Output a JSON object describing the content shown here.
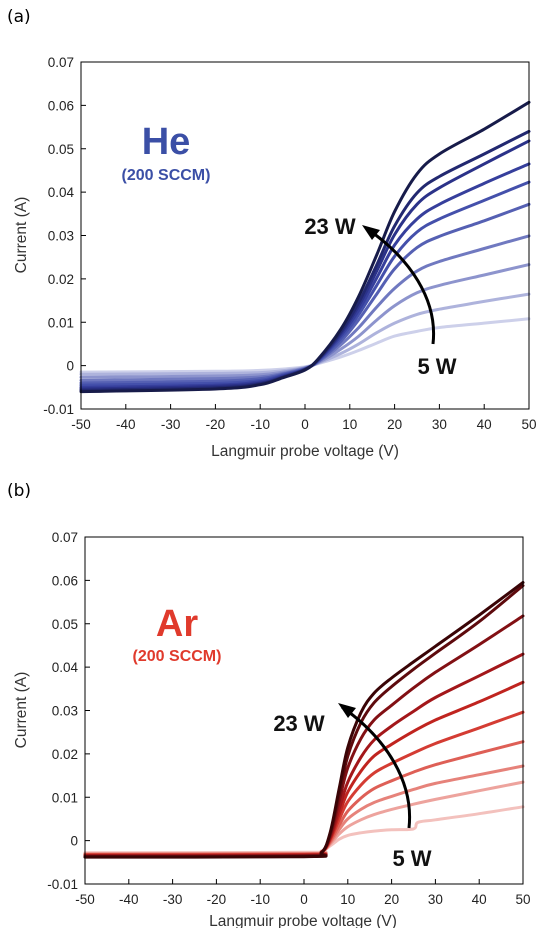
{
  "chart_data": [
    {
      "panel_label": "(a)",
      "type": "line",
      "gas": "He",
      "flow": "(200 SCCM)",
      "gas_color": "#3b4fa6",
      "xlabel": "Langmuir probe voltage (V)",
      "ylabel": "Current (A)",
      "xlim": [
        -50,
        50
      ],
      "ylim": [
        -0.01,
        0.07
      ],
      "xticks": [
        "-50",
        "-40",
        "-30",
        "-20",
        "-10",
        "0",
        "10",
        "20",
        "30",
        "40",
        "50"
      ],
      "yticks": [
        "-0.01",
        "0",
        "0.01",
        "0.02",
        "0.03",
        "0.04",
        "0.05",
        "0.06",
        "0.07"
      ],
      "annotation_high": "23 W",
      "annotation_low": "5 W",
      "series_colors": [
        "#cdd0ea",
        "#aeb3dc",
        "#8d94cd",
        "#7079c0",
        "#5560b3",
        "#4450ab",
        "#363f9c",
        "#2b3289",
        "#222870",
        "#171b4a"
      ],
      "series": [
        {
          "x": [
            -50,
            -20,
            -10,
            -5,
            0,
            3,
            8,
            12,
            16,
            20,
            25,
            30,
            40,
            50
          ],
          "y": [
            -0.0015,
            -0.0013,
            -0.0011,
            -0.0008,
            -0.0003,
            0.0005,
            0.002,
            0.0035,
            0.0052,
            0.0068,
            0.0079,
            0.0088,
            0.0098,
            0.0108
          ]
        },
        {
          "x": [
            -50,
            -20,
            -10,
            -5,
            0,
            3,
            8,
            12,
            16,
            20,
            25,
            30,
            40,
            50
          ],
          "y": [
            -0.002,
            -0.0018,
            -0.0016,
            -0.0012,
            -0.0004,
            0.0006,
            0.0028,
            0.005,
            0.0076,
            0.0098,
            0.0118,
            0.013,
            0.0148,
            0.0165
          ]
        },
        {
          "x": [
            -50,
            -20,
            -10,
            -5,
            0,
            3,
            8,
            12,
            16,
            20,
            25,
            30,
            40,
            50
          ],
          "y": [
            -0.0027,
            -0.0024,
            -0.0021,
            -0.0015,
            -0.0005,
            0.0007,
            0.0038,
            0.0068,
            0.0105,
            0.0138,
            0.0168,
            0.0185,
            0.0209,
            0.0233
          ]
        },
        {
          "x": [
            -50,
            -20,
            -10,
            -5,
            0,
            3,
            8,
            12,
            16,
            20,
            25,
            30,
            40,
            50
          ],
          "y": [
            -0.0034,
            -0.003,
            -0.0026,
            -0.0018,
            -0.0006,
            0.0009,
            0.0048,
            0.0088,
            0.0135,
            0.0178,
            0.0218,
            0.024,
            0.027,
            0.0299
          ]
        },
        {
          "x": [
            -50,
            -20,
            -10,
            -5,
            0,
            3,
            8,
            12,
            16,
            20,
            25,
            30,
            40,
            50
          ],
          "y": [
            -0.004,
            -0.0036,
            -0.003,
            -0.002,
            -0.0007,
            0.001,
            0.0056,
            0.0106,
            0.0165,
            0.0223,
            0.0272,
            0.0298,
            0.0334,
            0.0372
          ]
        },
        {
          "x": [
            -50,
            -20,
            -10,
            -5,
            0,
            3,
            8,
            12,
            16,
            20,
            25,
            30,
            40,
            50
          ],
          "y": [
            -0.0045,
            -0.0041,
            -0.0034,
            -0.0022,
            -0.0008,
            0.0012,
            0.0063,
            0.0118,
            0.0185,
            0.0252,
            0.0308,
            0.0338,
            0.0381,
            0.0423
          ]
        },
        {
          "x": [
            -50,
            -20,
            -10,
            -5,
            0,
            3,
            8,
            12,
            16,
            20,
            25,
            30,
            40,
            50
          ],
          "y": [
            -0.005,
            -0.0045,
            -0.0037,
            -0.0024,
            -0.0008,
            0.0013,
            0.0069,
            0.0128,
            0.0202,
            0.0278,
            0.0338,
            0.0372,
            0.042,
            0.0465
          ]
        },
        {
          "x": [
            -50,
            -20,
            -10,
            -5,
            0,
            3,
            8,
            12,
            16,
            20,
            25,
            30,
            40,
            50
          ],
          "y": [
            -0.0054,
            -0.0048,
            -0.004,
            -0.0026,
            -0.0009,
            0.0014,
            0.0074,
            0.0138,
            0.0218,
            0.0302,
            0.0372,
            0.041,
            0.0465,
            0.0518
          ]
        },
        {
          "x": [
            -50,
            -20,
            -10,
            -5,
            0,
            3,
            8,
            12,
            16,
            20,
            25,
            30,
            40,
            50
          ],
          "y": [
            -0.0057,
            -0.0051,
            -0.0042,
            -0.0027,
            -0.0009,
            0.0015,
            0.0078,
            0.0146,
            0.0232,
            0.0322,
            0.0398,
            0.0436,
            0.0488,
            0.054
          ]
        },
        {
          "x": [
            -50,
            -20,
            -10,
            -5,
            0,
            3,
            8,
            12,
            16,
            20,
            25,
            30,
            40,
            50
          ],
          "y": [
            -0.006,
            -0.0054,
            -0.0044,
            -0.0028,
            -0.001,
            0.0016,
            0.0084,
            0.016,
            0.0255,
            0.0355,
            0.0442,
            0.0488,
            0.0545,
            0.0607
          ]
        }
      ]
    },
    {
      "panel_label": "(b)",
      "type": "line",
      "gas": "Ar",
      "flow": "(200 SCCM)",
      "gas_color": "#e03a2c",
      "xlabel": "Langmuir probe voltage (V)",
      "ylabel": "Current (A)",
      "xlim": [
        -50,
        50
      ],
      "ylim": [
        -0.01,
        0.07
      ],
      "xticks": [
        "-50",
        "-40",
        "-30",
        "-20",
        "-10",
        "0",
        "10",
        "20",
        "30",
        "40",
        "50"
      ],
      "yticks": [
        "-0.01",
        "0",
        "0.01",
        "0.02",
        "0.03",
        "0.04",
        "0.05",
        "0.06",
        "0.07"
      ],
      "annotation_high": "23 W",
      "annotation_low": "5 W",
      "series_colors": [
        "#f3c1bd",
        "#eda39d",
        "#e6827a",
        "#de5f56",
        "#d43c33",
        "#c0241f",
        "#a3171a",
        "#821014",
        "#5e0a0d",
        "#3a0406"
      ],
      "series": [
        {
          "x": [
            -50,
            0,
            4,
            6,
            8,
            10,
            13,
            16,
            20,
            25,
            26,
            30,
            40,
            50
          ],
          "y": [
            -0.0028,
            -0.0027,
            -0.0024,
            -0.0012,
            0.0003,
            0.0012,
            0.0018,
            0.0022,
            0.0025,
            0.0027,
            0.0042,
            0.0048,
            0.0062,
            0.0078
          ]
        },
        {
          "x": [
            -50,
            0,
            4,
            6,
            8,
            10,
            13,
            16,
            20,
            25,
            30,
            40,
            50
          ],
          "y": [
            -0.003,
            -0.0029,
            -0.0025,
            -0.0008,
            0.0015,
            0.0032,
            0.0048,
            0.006,
            0.0072,
            0.0084,
            0.0095,
            0.0115,
            0.0135
          ]
        },
        {
          "x": [
            -50,
            0,
            4,
            6,
            8,
            10,
            13,
            16,
            20,
            25,
            30,
            40,
            50
          ],
          "y": [
            -0.0031,
            -0.003,
            -0.0026,
            -0.0005,
            0.0025,
            0.005,
            0.0072,
            0.0088,
            0.0102,
            0.0118,
            0.0132,
            0.0152,
            0.0172
          ]
        },
        {
          "x": [
            -50,
            0,
            4,
            6,
            8,
            10,
            13,
            16,
            20,
            25,
            30,
            40,
            50
          ],
          "y": [
            -0.0032,
            -0.0031,
            -0.0026,
            -0.0002,
            0.0035,
            0.0068,
            0.0098,
            0.012,
            0.0138,
            0.0158,
            0.0175,
            0.0202,
            0.0228
          ]
        },
        {
          "x": [
            -50,
            0,
            4,
            6,
            8,
            10,
            13,
            16,
            20,
            25,
            30,
            40,
            50
          ],
          "y": [
            -0.0033,
            -0.0032,
            -0.0026,
            0.0002,
            0.0048,
            0.009,
            0.0128,
            0.0156,
            0.0178,
            0.0202,
            0.0224,
            0.026,
            0.0296
          ]
        },
        {
          "x": [
            -50,
            0,
            4,
            6,
            8,
            10,
            13,
            16,
            20,
            25,
            30,
            40,
            50
          ],
          "y": [
            -0.0034,
            -0.0033,
            -0.0027,
            0.0005,
            0.006,
            0.0112,
            0.016,
            0.0195,
            0.0222,
            0.0252,
            0.0278,
            0.032,
            0.0365
          ]
        },
        {
          "x": [
            -50,
            0,
            4,
            6,
            8,
            10,
            13,
            16,
            20,
            25,
            30,
            40,
            50
          ],
          "y": [
            -0.0035,
            -0.0034,
            -0.0027,
            0.0008,
            0.0072,
            0.0135,
            0.0192,
            0.0232,
            0.0264,
            0.0298,
            0.033,
            0.038,
            0.043
          ]
        },
        {
          "x": [
            -50,
            0,
            4,
            6,
            8,
            10,
            13,
            16,
            20,
            25,
            30,
            40,
            50
          ],
          "y": [
            -0.0036,
            -0.0035,
            -0.0027,
            0.0012,
            0.009,
            0.0168,
            0.0235,
            0.0278,
            0.0312,
            0.0352,
            0.0388,
            0.0452,
            0.0518
          ]
        },
        {
          "x": [
            -50,
            0,
            4,
            6,
            8,
            10,
            13,
            16,
            20,
            25,
            30,
            40,
            50
          ],
          "y": [
            -0.0037,
            -0.0036,
            -0.0027,
            0.0016,
            0.0105,
            0.0195,
            0.0272,
            0.0318,
            0.0355,
            0.0395,
            0.0432,
            0.0505,
            0.0588
          ]
        },
        {
          "x": [
            -50,
            0,
            4,
            6,
            8,
            10,
            13,
            16,
            20,
            25,
            30,
            40,
            50
          ],
          "y": [
            -0.0038,
            -0.0037,
            -0.0028,
            0.002,
            0.0118,
            0.0215,
            0.0295,
            0.034,
            0.0375,
            0.0412,
            0.0448,
            0.052,
            0.0595
          ]
        }
      ]
    }
  ]
}
